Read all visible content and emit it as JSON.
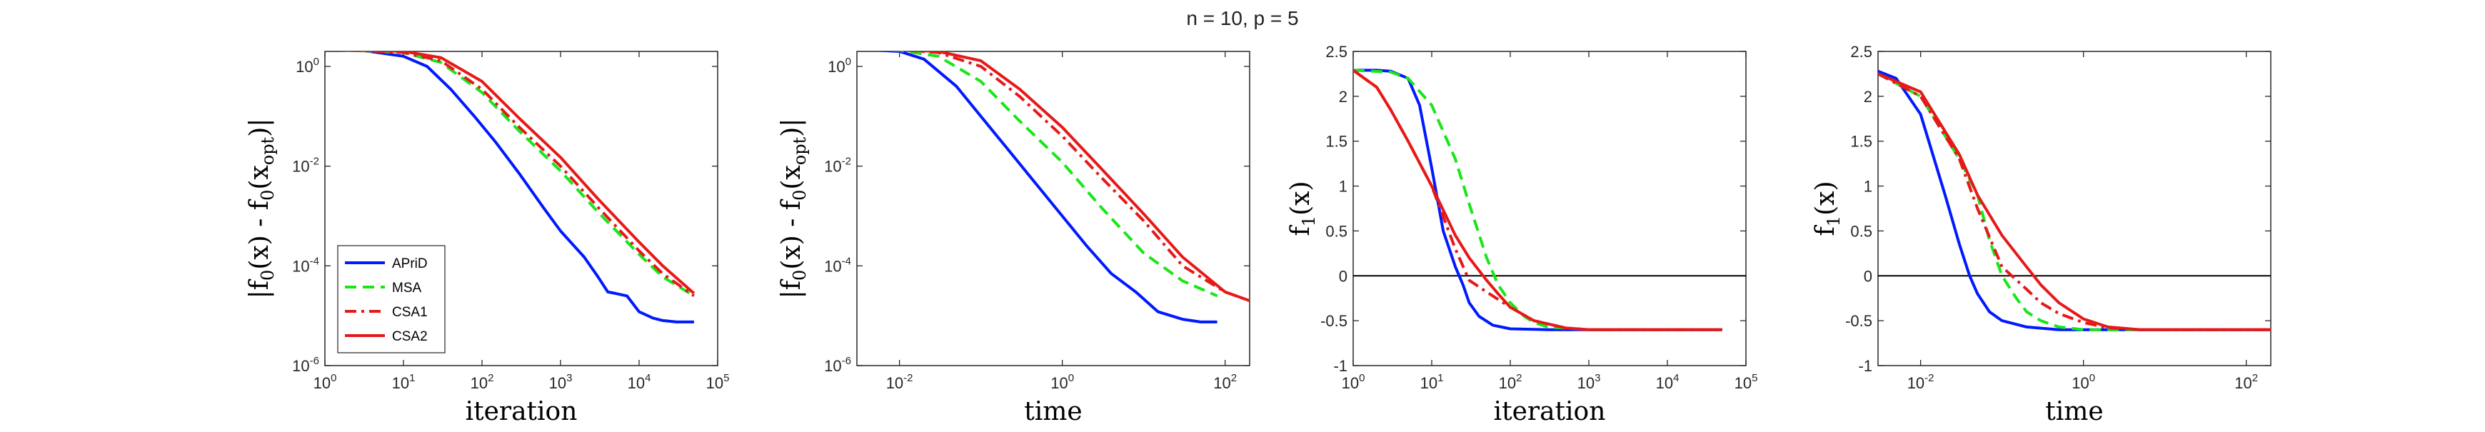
{
  "figure": {
    "title": "n = 10, p = 5",
    "colors": {
      "APriD": "#0019ff",
      "MSA": "#19e619",
      "CSA1": "#e61919",
      "CSA2": "#e61919",
      "axis": "#262626",
      "zero": "#000000"
    }
  },
  "chart_data": [
    {
      "type": "line",
      "title": "",
      "xscale": "log",
      "yscale": "log",
      "xlim": [
        1,
        100000
      ],
      "ylim": [
        1e-06,
        2
      ],
      "xticks": [
        1,
        10,
        100,
        1000,
        10000,
        100000
      ],
      "xtick_labels": [
        "10^0",
        "10^1",
        "10^2",
        "10^3",
        "10^4",
        "10^5"
      ],
      "yticks": [
        1e-06,
        0.0001,
        0.01,
        1
      ],
      "ytick_labels": [
        "10^-6",
        "10^-4",
        "10^-2",
        "10^0"
      ],
      "xlabel": "iteration",
      "ylabel": "|f_0(x) - f_0(x_opt)|",
      "legend": {
        "position": "bottom-left",
        "entries": [
          "APriD",
          "MSA",
          "CSA1",
          "CSA2"
        ]
      },
      "series": [
        {
          "name": "APriD",
          "style": "solid",
          "color": "#0019ff",
          "x": [
            1,
            3,
            10,
            20,
            40,
            80,
            150,
            300,
            600,
            1000,
            2000,
            3000,
            4000,
            5000,
            7000,
            10000,
            15000,
            20000,
            30000,
            50000
          ],
          "y": [
            2.2,
            2.1,
            1.6,
            1.0,
            0.35,
            0.1,
            0.03,
            0.007,
            0.0015,
            0.0005,
            0.00015,
            6e-05,
            3e-05,
            2.8e-05,
            2.5e-05,
            1.2e-05,
            9e-06,
            8e-06,
            7.5e-06,
            7.5e-06
          ]
        },
        {
          "name": "MSA",
          "style": "dashed",
          "color": "#19e619",
          "x": [
            1,
            10,
            30,
            100,
            300,
            1000,
            3000,
            10000,
            20000,
            50000
          ],
          "y": [
            2.2,
            1.9,
            1.2,
            0.3,
            0.05,
            0.008,
            0.0012,
            0.00017,
            6e-05,
            2.5e-05
          ]
        },
        {
          "name": "CSA1",
          "style": "dashdot",
          "color": "#e61919",
          "x": [
            1,
            10,
            30,
            100,
            300,
            1000,
            3000,
            10000,
            20000,
            50000
          ],
          "y": [
            2.2,
            1.9,
            1.3,
            0.35,
            0.06,
            0.01,
            0.0015,
            0.0002,
            7e-05,
            2.5e-05
          ]
        },
        {
          "name": "CSA2",
          "style": "solid",
          "color": "#e61919",
          "x": [
            1,
            10,
            30,
            100,
            300,
            1000,
            3000,
            10000,
            20000,
            50000
          ],
          "y": [
            2.2,
            2.0,
            1.5,
            0.5,
            0.09,
            0.015,
            0.0022,
            0.0003,
            0.0001,
            2.8e-05
          ]
        }
      ]
    },
    {
      "type": "line",
      "title": "",
      "xscale": "log",
      "yscale": "log",
      "xlim": [
        0.003,
        200
      ],
      "ylim": [
        1e-06,
        2
      ],
      "xticks": [
        0.01,
        1,
        100
      ],
      "xtick_labels": [
        "10^-2",
        "10^0",
        "10^2"
      ],
      "yticks": [
        1e-06,
        0.0001,
        0.01,
        1
      ],
      "ytick_labels": [
        "10^-6",
        "10^-4",
        "10^-2",
        "10^0"
      ],
      "xlabel": "time",
      "ylabel": "|f_0(x) - f_0(x_opt)|",
      "series": [
        {
          "name": "APriD",
          "style": "solid",
          "color": "#0019ff",
          "x": [
            0.003,
            0.01,
            0.02,
            0.05,
            0.1,
            0.2,
            0.5,
            1,
            2,
            4,
            8,
            15,
            30,
            50,
            80
          ],
          "y": [
            2.2,
            2.0,
            1.4,
            0.4,
            0.1,
            0.025,
            0.004,
            0.001,
            0.00025,
            7e-05,
            3e-05,
            1.2e-05,
            8.5e-06,
            7.5e-06,
            7.5e-06
          ]
        },
        {
          "name": "MSA",
          "style": "dashed",
          "color": "#19e619",
          "x": [
            0.003,
            0.01,
            0.03,
            0.1,
            0.3,
            1,
            3,
            10,
            30,
            80
          ],
          "y": [
            2.2,
            2.1,
            1.6,
            0.5,
            0.08,
            0.012,
            0.0015,
            0.00018,
            5e-05,
            2.5e-05
          ]
        },
        {
          "name": "CSA1",
          "style": "dashdot",
          "color": "#e61919",
          "x": [
            0.003,
            0.01,
            0.03,
            0.1,
            0.3,
            1,
            3,
            10,
            30,
            100,
            200
          ],
          "y": [
            2.2,
            2.15,
            1.9,
            1.0,
            0.25,
            0.04,
            0.006,
            0.0008,
            0.0001,
            3e-05,
            2e-05
          ]
        },
        {
          "name": "CSA2",
          "style": "solid",
          "color": "#e61919",
          "x": [
            0.003,
            0.01,
            0.03,
            0.1,
            0.3,
            1,
            3,
            10,
            30,
            100,
            200
          ],
          "y": [
            2.2,
            2.15,
            2.0,
            1.3,
            0.35,
            0.06,
            0.009,
            0.0011,
            0.00015,
            3e-05,
            2e-05
          ]
        }
      ]
    },
    {
      "type": "line",
      "title": "",
      "xscale": "log",
      "yscale": "linear",
      "xlim": [
        1,
        100000
      ],
      "ylim": [
        -1,
        2.5
      ],
      "xticks": [
        1,
        10,
        100,
        1000,
        10000,
        100000
      ],
      "xtick_labels": [
        "10^0",
        "10^1",
        "10^2",
        "10^3",
        "10^4",
        "10^5"
      ],
      "yticks": [
        -1,
        -0.5,
        0,
        0.5,
        1,
        1.5,
        2,
        2.5
      ],
      "ytick_labels": [
        "-1",
        "-0.5",
        "0",
        "0.5",
        "1",
        "1.5",
        "2",
        "2.5"
      ],
      "xlabel": "iteration",
      "ylabel": "f_1(x)",
      "zero_line": true,
      "series": [
        {
          "name": "APriD",
          "style": "solid",
          "color": "#0019ff",
          "x": [
            1,
            2,
            3,
            5,
            7,
            10,
            14,
            20,
            25,
            30,
            40,
            60,
            100,
            300,
            1000,
            50000
          ],
          "y": [
            2.29,
            2.29,
            2.28,
            2.2,
            1.9,
            1.2,
            0.5,
            0.1,
            -0.1,
            -0.3,
            -0.45,
            -0.55,
            -0.59,
            -0.6,
            -0.6,
            -0.6
          ]
        },
        {
          "name": "MSA",
          "style": "dashed",
          "color": "#19e619",
          "x": [
            1,
            3,
            5,
            10,
            20,
            30,
            50,
            70,
            100,
            150,
            200,
            300,
            1000,
            50000
          ],
          "y": [
            2.29,
            2.27,
            2.2,
            1.9,
            1.3,
            0.8,
            0.2,
            -0.1,
            -0.3,
            -0.45,
            -0.52,
            -0.57,
            -0.6,
            -0.6
          ]
        },
        {
          "name": "CSA1",
          "style": "dashdot",
          "color": "#e61919",
          "x": [
            1,
            2,
            3,
            5,
            10,
            20,
            30,
            50,
            100,
            200,
            500,
            1000,
            50000
          ],
          "y": [
            2.29,
            2.1,
            1.85,
            1.5,
            1.0,
            0.3,
            -0.05,
            -0.18,
            -0.35,
            -0.5,
            -0.58,
            -0.6,
            -0.6
          ]
        },
        {
          "name": "CSA2",
          "style": "solid",
          "color": "#e61919",
          "x": [
            1,
            2,
            3,
            5,
            10,
            20,
            30,
            50,
            70,
            100,
            200,
            500,
            1000,
            50000
          ],
          "y": [
            2.29,
            2.1,
            1.85,
            1.5,
            1.0,
            0.45,
            0.2,
            -0.05,
            -0.2,
            -0.35,
            -0.5,
            -0.58,
            -0.6,
            -0.6
          ]
        }
      ]
    },
    {
      "type": "line",
      "title": "",
      "xscale": "log",
      "yscale": "linear",
      "xlim": [
        0.003,
        200
      ],
      "ylim": [
        -1,
        2.5
      ],
      "xticks": [
        0.01,
        1,
        100
      ],
      "xtick_labels": [
        "10^-2",
        "10^0",
        "10^2"
      ],
      "yticks": [
        -1,
        -0.5,
        0,
        0.5,
        1,
        1.5,
        2,
        2.5
      ],
      "ytick_labels": [
        "-1",
        "-0.5",
        "0",
        "0.5",
        "1",
        "1.5",
        "2",
        "2.5"
      ],
      "xlabel": "time",
      "ylabel": "f_1(x)",
      "zero_line": true,
      "series": [
        {
          "name": "APriD",
          "style": "solid",
          "color": "#0019ff",
          "x": [
            0.003,
            0.005,
            0.01,
            0.02,
            0.03,
            0.04,
            0.05,
            0.07,
            0.1,
            0.2,
            0.5,
            1,
            200
          ],
          "y": [
            2.28,
            2.2,
            1.8,
            0.9,
            0.35,
            0.0,
            -0.2,
            -0.4,
            -0.5,
            -0.57,
            -0.6,
            -0.6,
            -0.6
          ]
        },
        {
          "name": "MSA",
          "style": "dashed",
          "color": "#19e619",
          "x": [
            0.003,
            0.01,
            0.03,
            0.05,
            0.07,
            0.1,
            0.15,
            0.2,
            0.3,
            0.5,
            1,
            200
          ],
          "y": [
            2.25,
            2.0,
            1.3,
            0.9,
            0.4,
            0.0,
            -0.25,
            -0.4,
            -0.5,
            -0.57,
            -0.6,
            -0.6
          ]
        },
        {
          "name": "CSA1",
          "style": "dashdot",
          "color": "#e61919",
          "x": [
            0.003,
            0.01,
            0.03,
            0.05,
            0.1,
            0.2,
            0.3,
            0.5,
            1,
            2,
            5,
            200
          ],
          "y": [
            2.25,
            2.0,
            1.3,
            0.75,
            0.1,
            -0.15,
            -0.3,
            -0.42,
            -0.52,
            -0.58,
            -0.6,
            -0.6
          ]
        },
        {
          "name": "CSA2",
          "style": "solid",
          "color": "#e61919",
          "x": [
            0.003,
            0.01,
            0.03,
            0.05,
            0.1,
            0.2,
            0.3,
            0.5,
            1,
            2,
            5,
            200
          ],
          "y": [
            2.25,
            2.05,
            1.35,
            0.9,
            0.45,
            0.1,
            -0.1,
            -0.3,
            -0.48,
            -0.57,
            -0.6,
            -0.6
          ]
        }
      ]
    }
  ]
}
